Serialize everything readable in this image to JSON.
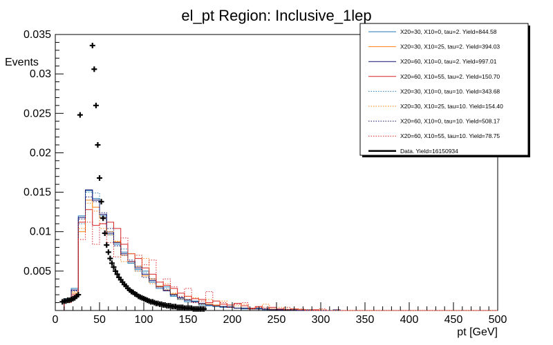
{
  "chart_data": {
    "type": "histogram",
    "title": "el_pt Region: Inclusive_1lep",
    "xlabel": "pt [GeV]",
    "ylabel": "Events",
    "xlim": [
      0,
      500
    ],
    "ylim": [
      0,
      0.035
    ],
    "x_ticks": [
      0,
      50,
      100,
      150,
      200,
      250,
      300,
      350,
      400,
      450,
      500
    ],
    "y_ticks": [
      0.005,
      0.01,
      0.015,
      0.02,
      0.025,
      0.03,
      0.035
    ],
    "y_tick_labels": [
      "0.005",
      "0.01",
      "0.015",
      "0.02",
      "0.025",
      "0.03",
      "0.035"
    ],
    "bin_edges": [
      10,
      18,
      26,
      34,
      42,
      50,
      58,
      66,
      74,
      82,
      90,
      98,
      106,
      114,
      122,
      130,
      138,
      146,
      154,
      162,
      170,
      178,
      186,
      194,
      202,
      210,
      218,
      226,
      234,
      242,
      250,
      258,
      266,
      274,
      282,
      290,
      298,
      306,
      314,
      322,
      330,
      338,
      346,
      354,
      362,
      370,
      378,
      386,
      394,
      402,
      410,
      418,
      426,
      434,
      442,
      450,
      458,
      466,
      474,
      482,
      490,
      500
    ],
    "series": [
      {
        "name": "X20=30, X10=0, tau=2. Yield=844.58",
        "color": "#1f77b4",
        "style": "solid",
        "values": [
          0.0015,
          0.0028,
          0.012,
          0.0152,
          0.0142,
          0.012,
          0.0096,
          0.0084,
          0.0074,
          0.006,
          0.0052,
          0.005,
          0.0036,
          0.0028,
          0.003,
          0.0018,
          0.0014,
          0.0011,
          0.0012,
          0.0007,
          0.0006,
          0.0005,
          0.0004,
          0.0005,
          0.0003,
          0.0002,
          0.0002,
          0.0003,
          0.0001,
          0.0001,
          0.0001,
          0.0001,
          0.0001,
          0,
          0.0001,
          0,
          0,
          0,
          0.0001,
          0,
          0,
          0,
          0,
          0,
          0,
          0,
          0,
          0,
          0,
          0,
          0,
          0,
          0,
          0,
          0,
          0,
          0,
          0,
          0,
          0
        ]
      },
      {
        "name": "X20=30, X10=25, tau=2. Yield=394.03",
        "color": "#ff7f0e",
        "style": "solid",
        "values": [
          0.0012,
          0.0022,
          0.01,
          0.014,
          0.0131,
          0.0118,
          0.01,
          0.0087,
          0.007,
          0.0062,
          0.0056,
          0.0044,
          0.004,
          0.0031,
          0.0026,
          0.0021,
          0.0016,
          0.0014,
          0.0011,
          0.0009,
          0.0008,
          0.0007,
          0.0005,
          0.0004,
          0.0003,
          0.0003,
          0.0002,
          0.0002,
          0.0002,
          0.0001,
          0.0001,
          0.0001,
          0.0001,
          0.0001,
          0,
          0,
          0,
          0,
          0,
          0,
          0,
          0,
          0,
          0,
          0,
          0,
          0,
          0,
          0,
          0,
          0,
          0,
          0,
          0,
          0,
          0,
          0,
          0,
          0,
          0
        ]
      },
      {
        "name": "X20=60, X10=0, tau=2. Yield=997.01",
        "color": "#0b0b6e",
        "style": "solid",
        "values": [
          0.0013,
          0.0026,
          0.0118,
          0.0153,
          0.014,
          0.0122,
          0.0098,
          0.0086,
          0.0072,
          0.0062,
          0.0054,
          0.0046,
          0.0038,
          0.003,
          0.0025,
          0.002,
          0.0016,
          0.0013,
          0.0011,
          0.0009,
          0.0007,
          0.0006,
          0.0005,
          0.0004,
          0.0003,
          0.0003,
          0.0002,
          0.0002,
          0.0002,
          0.0001,
          0.0001,
          0.0001,
          0.0001,
          0,
          0,
          0,
          0,
          0,
          0,
          0,
          0,
          0,
          0,
          0,
          0,
          0,
          0,
          0,
          0,
          0,
          0,
          0,
          0,
          0,
          0,
          0,
          0,
          0,
          0,
          0
        ]
      },
      {
        "name": "X20=60, X10=55, tau=2. Yield=150.70",
        "color": "#d62020",
        "style": "solid",
        "values": [
          0.0012,
          0.002,
          0.0112,
          0.0128,
          0.0108,
          0.011,
          0.0112,
          0.0104,
          0.0084,
          0.0072,
          0.0066,
          0.0054,
          0.0046,
          0.0036,
          0.0032,
          0.0028,
          0.0022,
          0.0018,
          0.0015,
          0.0014,
          0.001,
          0.0012,
          0.0008,
          0.0007,
          0.0009,
          0.0006,
          0.0003,
          0.0005,
          0.0002,
          0.0004,
          0.0002,
          0.0001,
          0.0002,
          0.0001,
          0,
          0.0001,
          0,
          0,
          0,
          0,
          0,
          0,
          0,
          0,
          0,
          0,
          0,
          0,
          0,
          0,
          0,
          0,
          0,
          0,
          0,
          0,
          0,
          0,
          0,
          0
        ]
      },
      {
        "name": "X20=30, X10=0, tau=10. Yield=343.68",
        "color": "#1f77b4",
        "style": "dotted",
        "values": [
          0.0014,
          0.0024,
          0.011,
          0.015,
          0.0149,
          0.0118,
          0.01,
          0.0082,
          0.0078,
          0.006,
          0.005,
          0.0048,
          0.0036,
          0.003,
          0.0028,
          0.0019,
          0.0015,
          0.0013,
          0.0011,
          0.0008,
          0.0007,
          0.0006,
          0.0005,
          0.0004,
          0.0003,
          0.0003,
          0.0002,
          0.0002,
          0.0002,
          0.0001,
          0.0001,
          0.0001,
          0.0001,
          0,
          0,
          0,
          0,
          0,
          0,
          0,
          0,
          0,
          0,
          0,
          0,
          0,
          0,
          0,
          0,
          0,
          0,
          0,
          0,
          0,
          0,
          0,
          0,
          0,
          0,
          0
        ]
      },
      {
        "name": "X20=30, X10=25, tau=10. Yield=154.40",
        "color": "#ff7f0e",
        "style": "dotted",
        "values": [
          0.0011,
          0.0024,
          0.0104,
          0.0136,
          0.0126,
          0.0104,
          0.0096,
          0.0088,
          0.0062,
          0.0072,
          0.005,
          0.0066,
          0.0034,
          0.003,
          0.0034,
          0.0022,
          0.0014,
          0.0018,
          0.0016,
          0.0008,
          0.0014,
          0.0006,
          0.0012,
          0.0004,
          0.0006,
          0.0008,
          0.0002,
          0.0004,
          0.0008,
          0.0002,
          0.0004,
          0.0002,
          0.0002,
          0.0001,
          0.0001,
          0,
          0.0001,
          0,
          0,
          0,
          0,
          0,
          0,
          0,
          0,
          0,
          0,
          0,
          0,
          0,
          0,
          0,
          0,
          0,
          0,
          0,
          0,
          0,
          0,
          0
        ]
      },
      {
        "name": "X20=60, X10=0, tau=10. Yield=508.17",
        "color": "#0b0b6e",
        "style": "dotted",
        "values": [
          0.0012,
          0.0025,
          0.0116,
          0.0144,
          0.0138,
          0.0124,
          0.0104,
          0.0082,
          0.007,
          0.0064,
          0.0056,
          0.0042,
          0.004,
          0.003,
          0.0026,
          0.002,
          0.0017,
          0.0014,
          0.001,
          0.0009,
          0.0007,
          0.0006,
          0.0005,
          0.0004,
          0.0003,
          0.0003,
          0.0002,
          0.0002,
          0.0002,
          0.0001,
          0.0001,
          0.0001,
          0,
          0,
          0,
          0,
          0,
          0,
          0,
          0,
          0,
          0,
          0,
          0,
          0,
          0,
          0,
          0,
          0,
          0,
          0,
          0,
          0,
          0,
          0,
          0,
          0,
          0,
          0,
          0
        ]
      },
      {
        "name": "X20=60, X10=55, tau=10. Yield=78.75",
        "color": "#d62020",
        "style": "dotted",
        "values": [
          0.001,
          0.0018,
          0.009,
          0.0112,
          0.0084,
          0.011,
          0.0086,
          0.0068,
          0.0092,
          0.0062,
          0.007,
          0.0058,
          0.0064,
          0.003,
          0.004,
          0.003,
          0.0018,
          0.0028,
          0.001,
          0.0012,
          0.0024,
          0.0006,
          0.001,
          0.0004,
          0.0008,
          0.001,
          0.0002,
          0.0004,
          0.0004,
          0.0002,
          0.0002,
          0.0004,
          0.0001,
          0.0002,
          0.0001,
          0,
          0.0002,
          0,
          0.0001,
          0,
          0,
          0,
          0,
          0,
          0,
          0,
          0,
          0,
          0,
          0,
          0,
          0,
          0,
          0,
          0,
          0,
          0,
          0,
          0,
          0
        ]
      }
    ],
    "data": {
      "name": "Data. Yield=16150934",
      "color": "#000000",
      "points": [
        [
          8,
          0.0011
        ],
        [
          10,
          0.0012
        ],
        [
          12,
          0.0012
        ],
        [
          14,
          0.0013
        ],
        [
          16,
          0.0013
        ],
        [
          18,
          0.0014
        ],
        [
          20,
          0.0015
        ],
        [
          22,
          0.0016
        ],
        [
          24,
          0.0018
        ],
        [
          26,
          0.002
        ],
        [
          28,
          0.0248
        ],
        [
          42,
          0.0336
        ],
        [
          44,
          0.0306
        ],
        [
          46,
          0.026
        ],
        [
          48,
          0.021
        ],
        [
          50,
          0.0168
        ],
        [
          52,
          0.0138
        ],
        [
          54,
          0.0117
        ],
        [
          56,
          0.0098
        ],
        [
          58,
          0.0083
        ],
        [
          60,
          0.0074
        ],
        [
          62,
          0.0066
        ],
        [
          64,
          0.006
        ],
        [
          66,
          0.0055
        ],
        [
          68,
          0.005
        ],
        [
          70,
          0.0046
        ],
        [
          72,
          0.0042
        ],
        [
          74,
          0.0039
        ],
        [
          76,
          0.0036
        ],
        [
          78,
          0.0033
        ],
        [
          80,
          0.0031
        ],
        [
          82,
          0.0028
        ],
        [
          84,
          0.0026
        ],
        [
          86,
          0.0024
        ],
        [
          88,
          0.0023
        ],
        [
          90,
          0.0021
        ],
        [
          92,
          0.002
        ],
        [
          94,
          0.0018
        ],
        [
          96,
          0.0017
        ],
        [
          98,
          0.0016
        ],
        [
          100,
          0.0015
        ],
        [
          102,
          0.0014
        ],
        [
          104,
          0.0013
        ],
        [
          106,
          0.0012
        ],
        [
          108,
          0.0011
        ],
        [
          110,
          0.0011
        ],
        [
          112,
          0.001
        ],
        [
          114,
          0.0009
        ],
        [
          116,
          0.0009
        ],
        [
          118,
          0.0008
        ],
        [
          120,
          0.0008
        ],
        [
          122,
          0.0007
        ],
        [
          124,
          0.0007
        ],
        [
          126,
          0.0006
        ],
        [
          128,
          0.0006
        ],
        [
          130,
          0.0006
        ],
        [
          132,
          0.0005
        ],
        [
          134,
          0.0005
        ],
        [
          136,
          0.0005
        ],
        [
          138,
          0.0004
        ],
        [
          140,
          0.0004
        ],
        [
          142,
          0.0004
        ],
        [
          144,
          0.0004
        ],
        [
          146,
          0.0003
        ],
        [
          148,
          0.0003
        ],
        [
          150,
          0.0003
        ],
        [
          152,
          0.0003
        ],
        [
          154,
          0.0003
        ],
        [
          156,
          0.0002
        ],
        [
          158,
          0.0002
        ],
        [
          160,
          0.0002
        ],
        [
          162,
          0.0002
        ],
        [
          164,
          0.0002
        ],
        [
          166,
          0.0002
        ],
        [
          168,
          0.0002
        ]
      ]
    },
    "legend": {
      "placement": "top-right",
      "entries": [
        "X20=30, X10=0, tau=2. Yield=844.58",
        "X20=30, X10=25, tau=2. Yield=394.03",
        "X20=60, X10=0, tau=2. Yield=997.01",
        "X20=60, X10=55, tau=2. Yield=150.70",
        "X20=30, X10=0, tau=10. Yield=343.68",
        "X20=30, X10=25, tau=10. Yield=154.40",
        "X20=60, X10=0, tau=10. Yield=508.17",
        "X20=60, X10=55, tau=10. Yield=78.75",
        "Data. Yield=16150934"
      ]
    }
  }
}
